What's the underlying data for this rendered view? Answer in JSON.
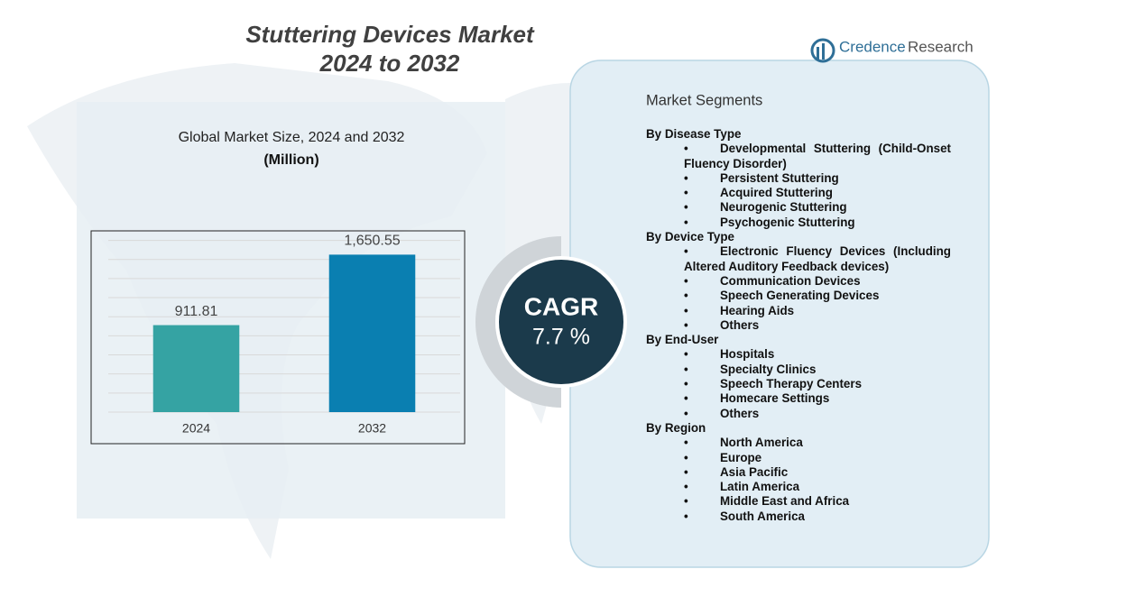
{
  "title_lines": [
    "Stuttering Devices Market",
    "2024 to 2032"
  ],
  "logo": {
    "brand": "Credence",
    "suffix": "Research"
  },
  "chart_data": {
    "type": "bar",
    "title": "Global Market Size, 2024 and 2032",
    "subtitle": "(Million)",
    "categories": [
      "2024",
      "2032"
    ],
    "values": [
      911.81,
      1650.55
    ],
    "value_labels": [
      "911.81",
      "1,650.55"
    ],
    "colors": [
      "#35a3a3",
      "#0a7fb1"
    ],
    "ylim": [
      0,
      1900
    ],
    "yticks": [
      0,
      200,
      400,
      600,
      800,
      1000,
      1200,
      1400,
      1600,
      1800
    ],
    "grid": true
  },
  "cagr": {
    "label": "CAGR",
    "value": "7.7 %"
  },
  "segments": {
    "title": "Market Segments",
    "groups": [
      {
        "name": "By Disease Type",
        "items": [
          "Developmental Stuttering (Child-Onset Fluency Disorder)",
          "Persistent Stuttering",
          "Acquired Stuttering",
          "Neurogenic Stuttering",
          "Psychogenic Stuttering"
        ]
      },
      {
        "name": "By Device Type",
        "items": [
          "Electronic Fluency Devices (Including Altered Auditory Feedback devices)",
          "Communication Devices",
          "Speech Generating Devices",
          "Hearing Aids",
          "Others"
        ]
      },
      {
        "name": "By End-User",
        "items": [
          "Hospitals",
          "Specialty Clinics",
          "Speech Therapy Centers",
          "Homecare Settings",
          "Others"
        ]
      },
      {
        "name": "By Region",
        "items": [
          "North America",
          "Europe",
          "Asia Pacific",
          "Latin America",
          "Middle East and Africa",
          "South America"
        ]
      }
    ]
  }
}
